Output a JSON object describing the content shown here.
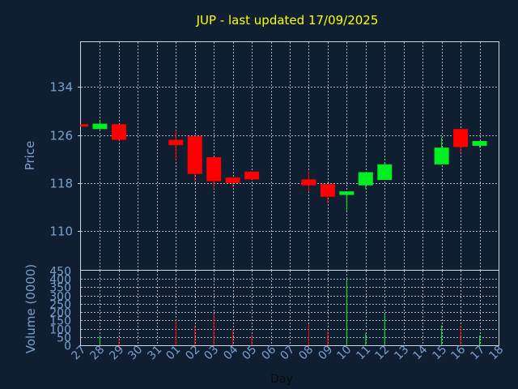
{
  "colors": {
    "background": "#0f1e30",
    "title": "#ffff00",
    "axis_text": "#7aa0cf",
    "up": "#00ee22",
    "down": "#ff0000",
    "grid": "#aeb8c4",
    "frame": "#cfd6de"
  },
  "chart_data": [
    {
      "type": "candlestick",
      "title": "JUP - last updated 17/09/2025",
      "ylabel": "Price",
      "ylim": [
        103.5,
        141.5
      ],
      "yticks": [
        110,
        118,
        126,
        134
      ],
      "grid": true,
      "x": [
        "27",
        "28",
        "29",
        "30",
        "31",
        "01",
        "02",
        "03",
        "04",
        "05",
        "06",
        "07",
        "08",
        "09",
        "10",
        "11",
        "12",
        "13",
        "14",
        "15",
        "16",
        "17",
        "18"
      ],
      "candles": [
        {
          "day": "27",
          "open": 127.8,
          "close": 127.4,
          "high": 127.8,
          "low": 127.4
        },
        {
          "day": "28",
          "open": 127.0,
          "close": 127.9,
          "high": 128.3,
          "low": 126.8
        },
        {
          "day": "29",
          "open": 127.8,
          "close": 125.2,
          "high": 127.8,
          "low": 125.0
        },
        {
          "day": "01",
          "open": 125.2,
          "close": 124.3,
          "high": 126.8,
          "low": 121.8
        },
        {
          "day": "02",
          "open": 125.8,
          "close": 119.5,
          "high": 125.8,
          "low": 118.3
        },
        {
          "day": "03",
          "open": 122.3,
          "close": 118.3,
          "high": 122.3,
          "low": 117.0
        },
        {
          "day": "04",
          "open": 118.9,
          "close": 118.0,
          "high": 118.9,
          "low": 117.3
        },
        {
          "day": "05",
          "open": 119.9,
          "close": 118.6,
          "high": 119.9,
          "low": 118.6
        },
        {
          "day": "08",
          "open": 118.6,
          "close": 117.6,
          "high": 120.0,
          "low": 116.5
        },
        {
          "day": "09",
          "open": 117.8,
          "close": 115.7,
          "high": 117.8,
          "low": 114.6
        },
        {
          "day": "10",
          "open": 116.0,
          "close": 116.6,
          "high": 116.6,
          "low": 113.4
        },
        {
          "day": "11",
          "open": 117.6,
          "close": 119.8,
          "high": 119.8,
          "low": 117.0
        },
        {
          "day": "12",
          "open": 118.5,
          "close": 121.1,
          "high": 121.5,
          "low": 118.5
        },
        {
          "day": "15",
          "open": 121.1,
          "close": 123.9,
          "high": 125.6,
          "low": 121.1
        },
        {
          "day": "16",
          "open": 127.0,
          "close": 124.0,
          "high": 127.0,
          "low": 123.0
        },
        {
          "day": "17",
          "open": 124.2,
          "close": 125.0,
          "high": 125.0,
          "low": 123.9
        }
      ]
    },
    {
      "type": "bar",
      "xlabel": "Day",
      "ylabel": "Volume (0000)",
      "ylim": [
        0,
        450
      ],
      "yticks": [
        0,
        50,
        100,
        150,
        200,
        250,
        300,
        350,
        400,
        450
      ],
      "grid": true,
      "categories": [
        "28",
        "29",
        "01",
        "02",
        "03",
        "04",
        "05",
        "08",
        "09",
        "10",
        "11",
        "12",
        "15",
        "16",
        "17"
      ],
      "values": [
        58,
        42,
        150,
        120,
        190,
        92,
        62,
        125,
        85,
        405,
        72,
        190,
        120,
        118,
        58
      ],
      "directions": [
        "up",
        "down",
        "down",
        "down",
        "down",
        "down",
        "down",
        "down",
        "down",
        "up",
        "up",
        "up",
        "up",
        "down",
        "up"
      ]
    }
  ]
}
